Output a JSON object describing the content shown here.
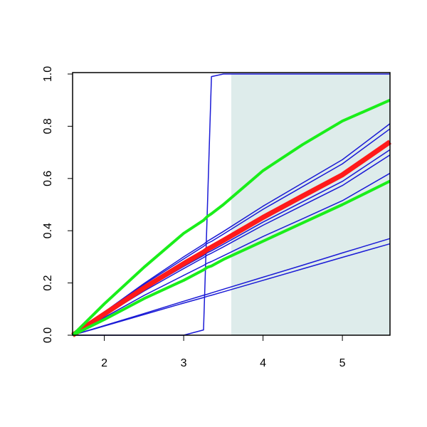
{
  "chart_data": {
    "type": "line",
    "x": [
      1.6,
      2.0,
      2.5,
      3.0,
      3.25,
      3.3,
      3.35,
      3.5,
      4.0,
      4.5,
      5.0,
      5.6
    ],
    "shaded_region": {
      "x": [
        3.6,
        5.6
      ],
      "color": "#deeceb"
    },
    "series": [
      {
        "color": "#1a1ad6",
        "line_width": 1.5,
        "values": [
          0,
          0.089,
          0.198,
          0.3,
          0.348,
          0.36,
          0.369,
          0.397,
          0.494,
          0.583,
          0.672,
          0.81
        ]
      },
      {
        "color": "#1a1ad6",
        "line_width": 1.5,
        "values": [
          0,
          0.087,
          0.194,
          0.292,
          0.34,
          0.352,
          0.359,
          0.387,
          0.482,
          0.569,
          0.656,
          0.79
        ]
      },
      {
        "color": "#1a1ad6",
        "line_width": 1.5,
        "values": [
          0,
          0.078,
          0.174,
          0.263,
          0.305,
          0.316,
          0.323,
          0.348,
          0.433,
          0.511,
          0.589,
          0.71
        ]
      },
      {
        "color": "#1a1ad6",
        "line_width": 1.5,
        "values": [
          0,
          0.076,
          0.169,
          0.255,
          0.297,
          0.307,
          0.314,
          0.338,
          0.421,
          0.497,
          0.573,
          0.69
        ]
      },
      {
        "color": "#1a1ad6",
        "line_width": 1.5,
        "values": [
          0,
          0.068,
          0.152,
          0.229,
          0.267,
          0.276,
          0.282,
          0.304,
          0.378,
          0.446,
          0.515,
          0.62
        ]
      },
      {
        "color": "#1a1ad6",
        "line_width": 1.5,
        "values": [
          0,
          0.037,
          0.083,
          0.13,
          0.153,
          0.157,
          0.162,
          0.176,
          0.222,
          0.268,
          0.315,
          0.37
        ]
      },
      {
        "color": "#1a1ad6",
        "line_width": 1.5,
        "values": [
          0,
          0.035,
          0.079,
          0.123,
          0.144,
          0.149,
          0.153,
          0.166,
          0.21,
          0.254,
          0.298,
          0.35
        ]
      },
      {
        "color": "#1a1ad6",
        "line_width": 1.5,
        "values": [
          0,
          0,
          0,
          0,
          0.02,
          0.5,
          0.99,
          1,
          1,
          1,
          1,
          1
        ]
      },
      {
        "color": "#ff1a1a",
        "line_width": 7,
        "values": [
          0,
          0.081,
          0.181,
          0.274,
          0.318,
          0.329,
          0.337,
          0.363,
          0.451,
          0.533,
          0.614,
          0.74
        ]
      },
      {
        "color": "#1aee1a",
        "line_width": 4,
        "values": [
          0,
          0.12,
          0.26,
          0.39,
          0.44,
          0.455,
          0.465,
          0.5,
          0.63,
          0.73,
          0.82,
          0.9
        ]
      },
      {
        "color": "#1aee1a",
        "line_width": 4,
        "values": [
          0,
          0.06,
          0.14,
          0.21,
          0.25,
          0.26,
          0.265,
          0.29,
          0.36,
          0.43,
          0.5,
          0.59
        ]
      }
    ],
    "xlim": [
      1.6,
      5.6
    ],
    "ylim": [
      0,
      1
    ],
    "xticks": [
      2,
      3,
      4,
      5
    ],
    "yticks": [
      {
        "value": 0,
        "label": "0.0"
      },
      0.2,
      0.4,
      0.6,
      0.8,
      {
        "value": 1,
        "label": "1.0"
      }
    ]
  }
}
